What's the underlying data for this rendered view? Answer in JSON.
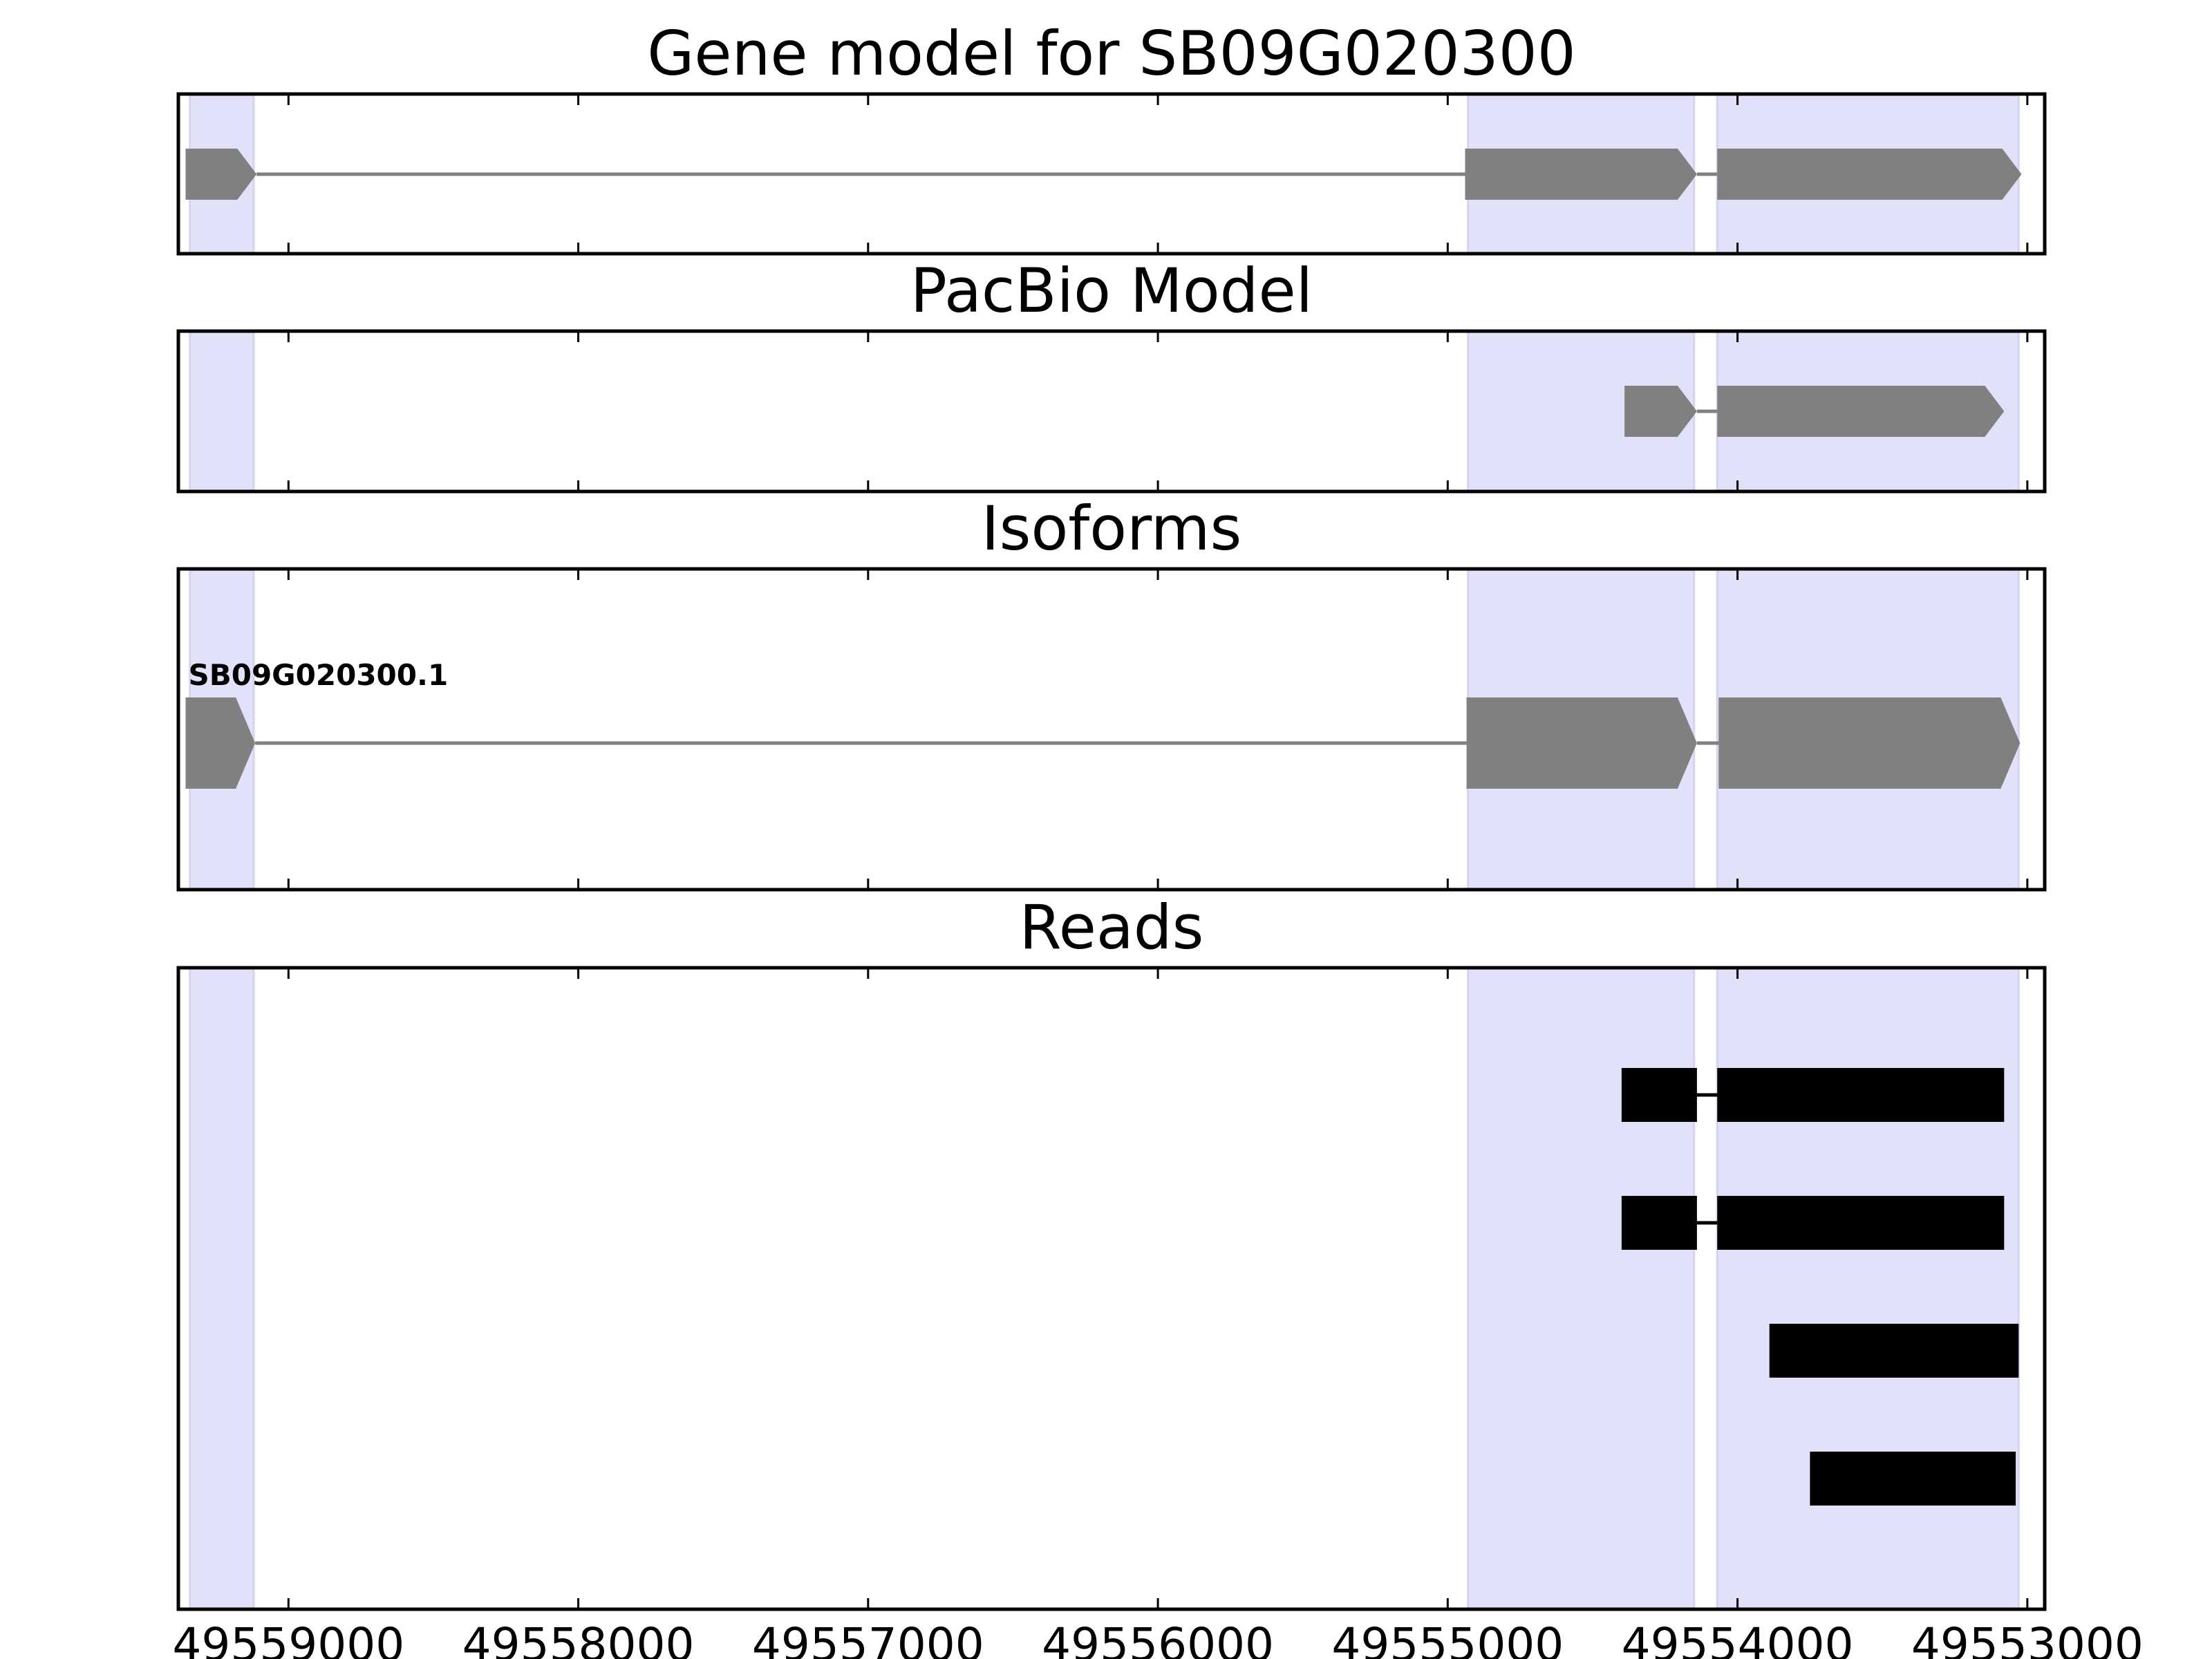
{
  "chart_data": {
    "type": "gene-track",
    "x_axis": {
      "direction": "descending",
      "xlim": [
        49559380,
        49552940
      ],
      "ticks": [
        49559000,
        49558000,
        49557000,
        49556000,
        49555000,
        49554000,
        49553000
      ],
      "tick_labels": [
        "49559000",
        "49558000",
        "49557000",
        "49556000",
        "49555000",
        "49554000",
        "49553000"
      ],
      "labels_on": "Reads"
    },
    "colors": {
      "highlight": "#e1e1fa",
      "model_feature": "#808080",
      "read_feature": "#000000",
      "frame": "#000000"
    },
    "exon_highlights": [
      {
        "start": 49559340,
        "end": 49559120
      },
      {
        "start": 49554930,
        "end": 49554150
      },
      {
        "start": 49554070,
        "end": 49553030
      }
    ],
    "panels": [
      {
        "id": "gene-model",
        "title": "Gene model for SB09G020300",
        "tracks": [
          {
            "label": "",
            "strand": "-",
            "style": "arrow",
            "color": "#808080",
            "exons": [
              {
                "start": 49559355,
                "end": 49559110
              },
              {
                "start": 49554940,
                "end": 49554140
              },
              {
                "start": 49554070,
                "end": 49553020
              }
            ]
          }
        ]
      },
      {
        "id": "pacbio-model",
        "title": "PacBio Model",
        "tracks": [
          {
            "label": "",
            "strand": "-",
            "style": "arrow",
            "color": "#808080",
            "exons": [
              {
                "start": 49554390,
                "end": 49554140
              },
              {
                "start": 49554070,
                "end": 49553080
              }
            ]
          }
        ]
      },
      {
        "id": "isoforms",
        "title": "Isoforms",
        "tracks": [
          {
            "label": "SB09G020300.1",
            "strand": "-",
            "style": "arrow",
            "color": "#808080",
            "exons": [
              {
                "start": 49559355,
                "end": 49559115
              },
              {
                "start": 49554935,
                "end": 49554140
              },
              {
                "start": 49554065,
                "end": 49553025
              }
            ]
          }
        ]
      },
      {
        "id": "reads",
        "title": "Reads",
        "tracks": [
          {
            "label": "",
            "strand": "-",
            "style": "block",
            "color": "#000000",
            "exons": [
              {
                "start": 49554400,
                "end": 49554140
              },
              {
                "start": 49554070,
                "end": 49553080
              }
            ]
          },
          {
            "label": "",
            "strand": "-",
            "style": "block",
            "color": "#000000",
            "exons": [
              {
                "start": 49554400,
                "end": 49554140
              },
              {
                "start": 49554070,
                "end": 49553080
              }
            ]
          },
          {
            "label": "",
            "strand": "-",
            "style": "block",
            "color": "#000000",
            "exons": [
              {
                "start": 49553890,
                "end": 49553030
              }
            ]
          },
          {
            "label": "",
            "strand": "-",
            "style": "block",
            "color": "#000000",
            "exons": [
              {
                "start": 49553750,
                "end": 49553040
              }
            ]
          }
        ]
      }
    ]
  }
}
